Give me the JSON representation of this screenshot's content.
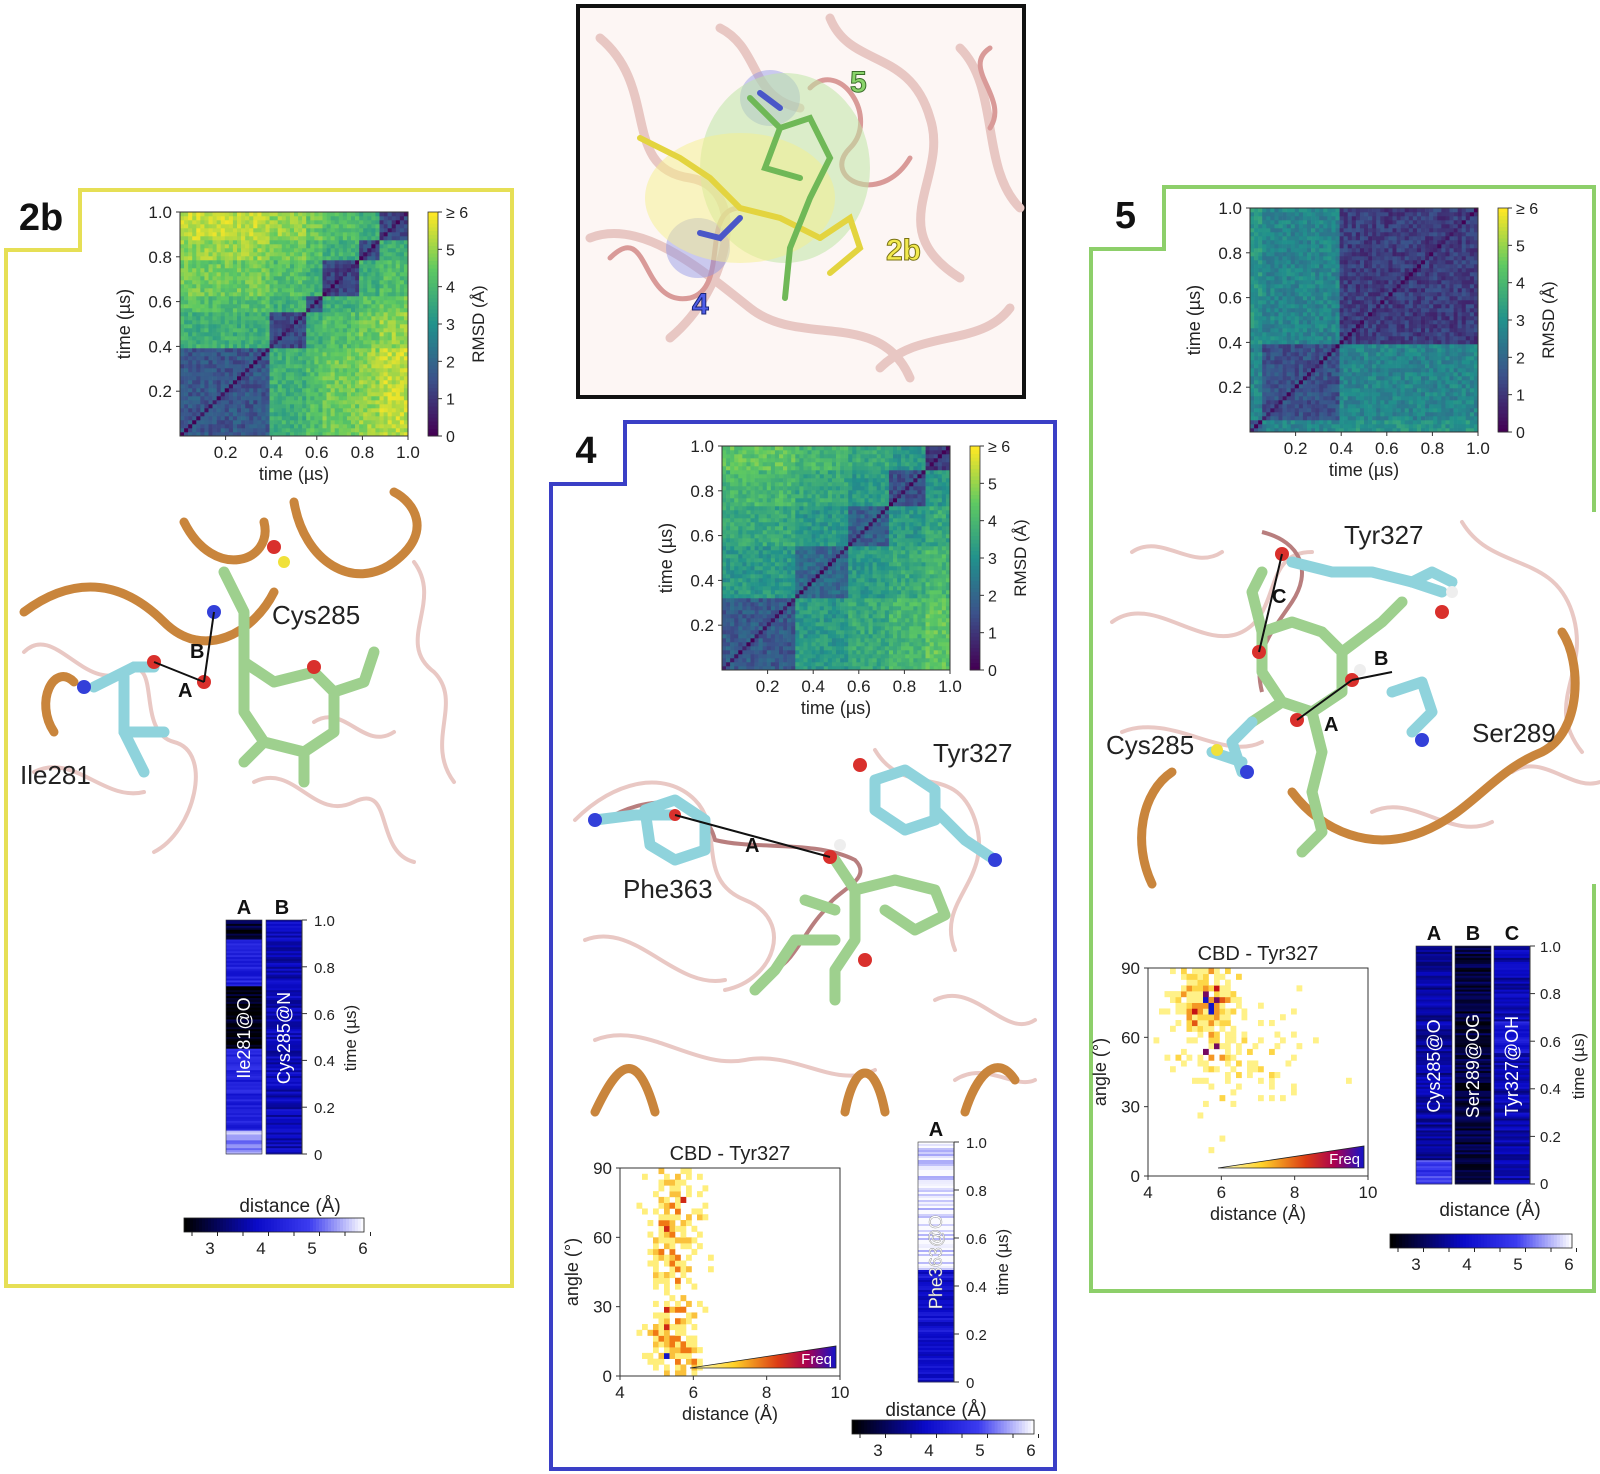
{
  "overview": {
    "labels": {
      "l5": "5",
      "l2b": "2b",
      "l4": "4"
    }
  },
  "panels": {
    "p2b": {
      "tag": "2b",
      "residues": {
        "r1": "Cys285",
        "r2": "Ile281"
      },
      "bonds": {
        "a": "A",
        "b": "B"
      },
      "strips": {
        "header_a": "A",
        "header_b": "B",
        "label_a": "Ile281@O",
        "label_b": "Cys285@N",
        "time_label": "time (µs)",
        "time_ticks": [
          "1.0",
          "0.8",
          "0.6",
          "0.4",
          "0.2",
          "0"
        ]
      },
      "colorbar": {
        "title": "distance (Å)",
        "ticks": [
          "3",
          "4",
          "5",
          "6"
        ]
      }
    },
    "p4": {
      "tag": "4",
      "residues": {
        "r1": "Tyr327",
        "r2": "Phe363"
      },
      "bonds": {
        "a": "A"
      },
      "strips": {
        "header_a": "A",
        "label_a": "Phe363@O",
        "time_label": "time (µs)",
        "time_ticks": [
          "1.0",
          "0.8",
          "0.6",
          "0.4",
          "0.2",
          "0"
        ]
      },
      "colorbar": {
        "title": "distance (Å)",
        "ticks": [
          "3",
          "4",
          "5",
          "6"
        ]
      }
    },
    "p5": {
      "tag": "5",
      "residues": {
        "r1": "Tyr327",
        "r2": "Cys285",
        "r3": "Ser289"
      },
      "bonds": {
        "a": "A",
        "b": "B",
        "c": "C"
      },
      "strips": {
        "header_a": "A",
        "header_b": "B",
        "header_c": "C",
        "label_a": "Cys285@O",
        "label_b": "Ser289@OG",
        "label_c": "Tyr327@OH",
        "time_label": "time (µs)",
        "time_ticks": [
          "1.0",
          "0.8",
          "0.6",
          "0.4",
          "0.2",
          "0"
        ]
      },
      "colorbar": {
        "title": "distance (Å)",
        "ticks": [
          "3",
          "4",
          "5",
          "6"
        ]
      }
    }
  },
  "chart_data": [
    {
      "id": "rmsd-2b",
      "type": "heatmap",
      "xlabel": "time (µs)",
      "ylabel": "time (µs)",
      "x_ticks": [
        "0.2",
        "0.4",
        "0.6",
        "0.8",
        "1.0"
      ],
      "y_ticks": [
        "1.0",
        "0.8",
        "0.6",
        "0.4",
        "0.2"
      ],
      "xlim": [
        0,
        1
      ],
      "ylim": [
        0,
        1
      ],
      "colorbar": {
        "label": "RMSD (Å)",
        "ticks": [
          "0",
          "1",
          "2",
          "3",
          "4",
          "5",
          "≥ 6"
        ],
        "range": [
          0,
          6
        ]
      },
      "blocks": [
        0,
        0.4,
        0.56,
        0.62,
        0.78,
        0.87,
        1.0
      ],
      "block_levels": [
        1.6,
        1.3,
        1.4,
        1.2,
        1.5,
        1.3
      ],
      "offdiag_level": 3.4
    },
    {
      "id": "rmsd-4",
      "type": "heatmap",
      "xlabel": "time (µs)",
      "ylabel": "time (µs)",
      "x_ticks": [
        "0.2",
        "0.4",
        "0.6",
        "0.8",
        "1.0"
      ],
      "y_ticks": [
        "1.0",
        "0.8",
        "0.6",
        "0.4",
        "0.2"
      ],
      "xlim": [
        0,
        1
      ],
      "ylim": [
        0,
        1
      ],
      "colorbar": {
        "label": "RMSD (Å)",
        "ticks": [
          "0",
          "1",
          "2",
          "3",
          "4",
          "5",
          "≥ 6"
        ],
        "range": [
          0,
          6
        ]
      },
      "blocks": [
        0,
        0.32,
        0.55,
        0.73,
        0.9,
        1.0
      ],
      "block_levels": [
        1.7,
        2.0,
        1.8,
        1.5,
        1.0
      ],
      "offdiag_level": 2.8
    },
    {
      "id": "rmsd-5",
      "type": "heatmap",
      "xlabel": "time (µs)",
      "ylabel": "time (µs)",
      "x_ticks": [
        "0.2",
        "0.4",
        "0.6",
        "0.8",
        "1.0"
      ],
      "y_ticks": [
        "1.0",
        "0.8",
        "0.6",
        "0.4",
        "0.2"
      ],
      "xlim": [
        0,
        1
      ],
      "ylim": [
        0,
        1
      ],
      "colorbar": {
        "label": "RMSD (Å)",
        "ticks": [
          "0",
          "1",
          "2",
          "3",
          "4",
          "5",
          "≥ 6"
        ],
        "range": [
          0,
          6
        ]
      },
      "blocks": [
        0,
        0.05,
        0.4,
        1.0
      ],
      "block_levels": [
        1.8,
        1.5,
        1.1
      ],
      "offdiag_level": 2.3
    },
    {
      "id": "angle-4",
      "type": "heatmap",
      "title": "CBD - Tyr327",
      "xlabel": "distance (Å)",
      "ylabel": "angle (°)",
      "x_ticks": [
        "4",
        "6",
        "8",
        "10"
      ],
      "y_ticks": [
        "0",
        "30",
        "60",
        "90"
      ],
      "xlim": [
        4,
        10
      ],
      "ylim": [
        0,
        90
      ],
      "legend": "Freq",
      "clusters": [
        {
          "x": 5.5,
          "y": 65,
          "sx": 0.35,
          "sy": 14,
          "n": 170
        },
        {
          "x": 5.5,
          "y": 15,
          "sx": 0.35,
          "sy": 12,
          "n": 170
        }
      ]
    },
    {
      "id": "angle-5",
      "type": "heatmap",
      "title": "CBD - Tyr327",
      "xlabel": "distance (Å)",
      "ylabel": "angle (°)",
      "x_ticks": [
        "4",
        "6",
        "8",
        "10"
      ],
      "y_ticks": [
        "0",
        "30",
        "60",
        "90"
      ],
      "xlim": [
        4,
        10
      ],
      "ylim": [
        0,
        90
      ],
      "legend": "Freq",
      "clusters": [
        {
          "x": 5.6,
          "y": 75,
          "sx": 0.4,
          "sy": 9,
          "n": 230
        },
        {
          "x": 6.4,
          "y": 52,
          "sx": 0.9,
          "sy": 12,
          "n": 110
        }
      ]
    }
  ]
}
